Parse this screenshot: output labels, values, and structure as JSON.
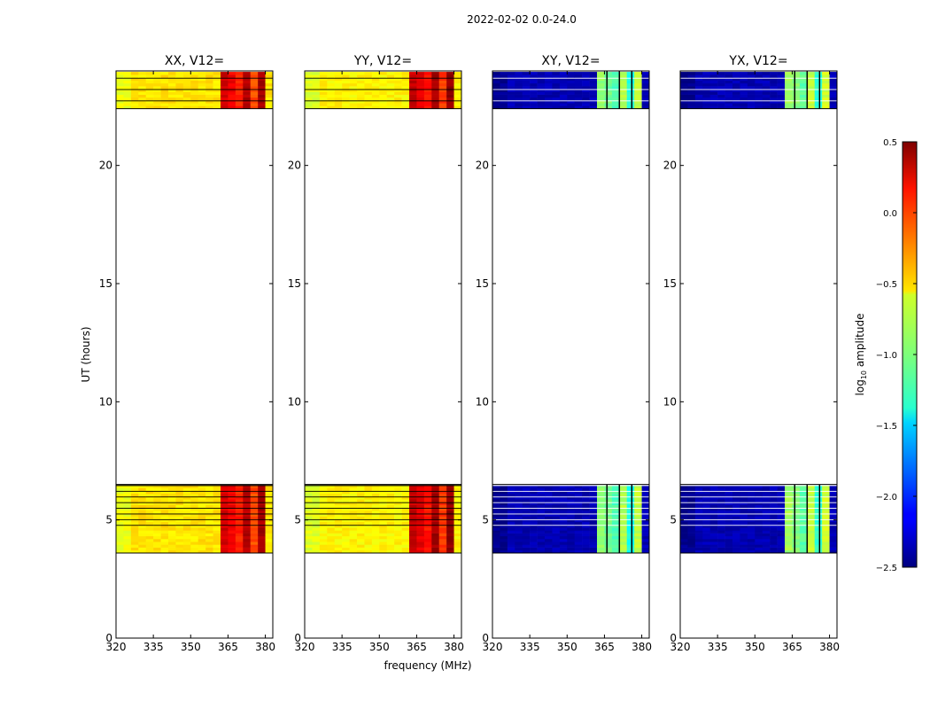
{
  "chart_data": {
    "type": "heatmap",
    "suptitle": "2022-02-02 0.0-24.0",
    "xlabel": "frequency (MHz)",
    "ylabel": "UT (hours)",
    "xlim": [
      320,
      383
    ],
    "ylim": [
      0,
      24
    ],
    "xticks": [
      320,
      335,
      350,
      365,
      380
    ],
    "yticks": [
      0,
      5,
      10,
      15,
      20
    ],
    "data_time_ranges_hours": [
      [
        3.6,
        6.5
      ],
      [
        22.4,
        24.0
      ]
    ],
    "bright_band_MHz": [
      363,
      380
    ],
    "panels": [
      {
        "id": "xx",
        "title": "XX, V12=",
        "base_log_amp": -0.55,
        "band_log_amp": 0.15
      },
      {
        "id": "yy",
        "title": "YY, V12=",
        "base_log_amp": -0.6,
        "band_log_amp": 0.2
      },
      {
        "id": "xy",
        "title": "XY, V12=",
        "base_log_amp": -2.35,
        "band_log_amp": -1.05
      },
      {
        "id": "yx",
        "title": "YX, V12=",
        "base_log_amp": -2.35,
        "band_log_amp": -1.0
      }
    ],
    "colorbar": {
      "label_prefix": "log",
      "label_subscript": "10",
      "label_suffix": " amplitude",
      "colormap": "jet",
      "range": [
        -2.5,
        0.5
      ],
      "ticks": [
        0.5,
        0.0,
        -0.5,
        -1.0,
        -1.5,
        -2.0,
        -2.5
      ],
      "tick_labels": [
        "0.5",
        "0.0",
        "−0.5",
        "−1.0",
        "−1.5",
        "−2.0",
        "−2.5"
      ]
    }
  }
}
